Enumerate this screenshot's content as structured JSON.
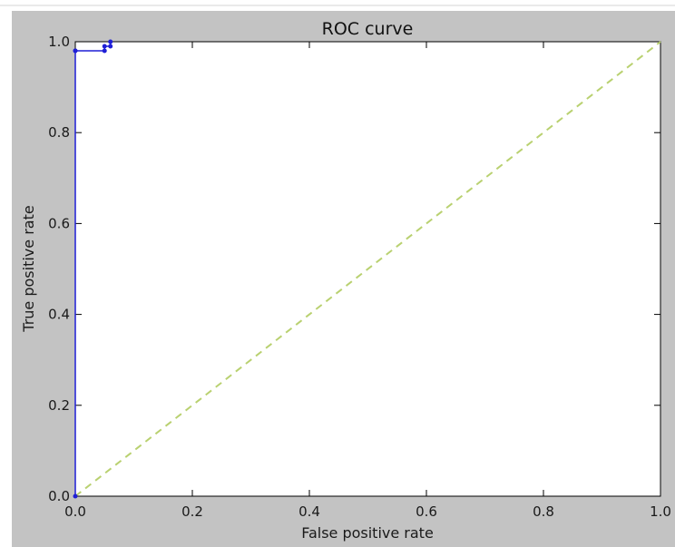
{
  "chart_data": {
    "type": "line",
    "title": "ROC curve",
    "xlabel": "False positive rate",
    "ylabel": "True positive rate",
    "xlim": [
      0.0,
      1.0
    ],
    "ylim": [
      0.0,
      1.0
    ],
    "x_ticks": [
      "0.0",
      "0.2",
      "0.4",
      "0.6",
      "0.8",
      "1.0"
    ],
    "y_ticks": [
      "0.0",
      "0.2",
      "0.4",
      "0.6",
      "0.8",
      "1.0"
    ],
    "grid": false,
    "legend": "none",
    "series": [
      {
        "style": "solid line with point markers",
        "color": "#1f1fd6",
        "x": [
          0.0,
          0.0,
          0.0,
          0.05,
          0.05,
          0.06,
          0.06
        ],
        "y": [
          0.0,
          0.98,
          0.98,
          0.98,
          0.99,
          0.99,
          1.0
        ]
      },
      {
        "style": "dashed reference line",
        "color": "#b9d170",
        "x": [
          0.0,
          1.0
        ],
        "y": [
          0.0,
          1.0
        ]
      }
    ]
  },
  "colors": {
    "figure_background": "#c3c3c3",
    "plot_background": "#ffffff"
  }
}
